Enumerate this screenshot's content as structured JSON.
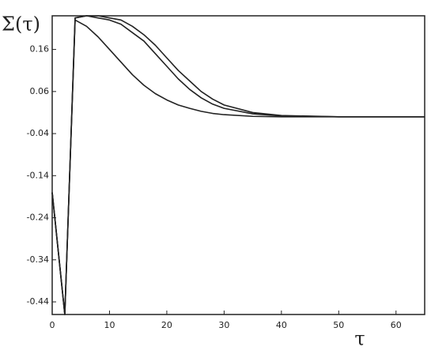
{
  "chart_data": {
    "type": "line",
    "ylabel": "Σ(τ)",
    "xlabel": "τ",
    "x": [
      0,
      2.2,
      4,
      6,
      8,
      10,
      12,
      14,
      16,
      18,
      20,
      22,
      24,
      26,
      28,
      30,
      35,
      40,
      50,
      65
    ],
    "series": [
      {
        "color": "#222222",
        "values": [
          -0.18,
          -0.47,
          0.23,
          0.215,
          0.19,
          0.16,
          0.13,
          0.1,
          0.075,
          0.055,
          0.04,
          0.028,
          0.02,
          0.013,
          0.008,
          0.005,
          0.001,
          0,
          0,
          0
        ]
      },
      {
        "color": "#222222",
        "values": [
          -0.18,
          -0.47,
          0.235,
          0.24,
          0.235,
          0.23,
          0.22,
          0.2,
          0.18,
          0.15,
          0.12,
          0.09,
          0.065,
          0.045,
          0.03,
          0.02,
          0.007,
          0.002,
          0,
          0
        ]
      },
      {
        "color": "#222222",
        "values": [
          -0.18,
          -0.47,
          0.235,
          0.24,
          0.24,
          0.235,
          0.23,
          0.215,
          0.195,
          0.17,
          0.14,
          0.11,
          0.085,
          0.06,
          0.042,
          0.028,
          0.01,
          0.003,
          0,
          0
        ]
      }
    ],
    "xlim": [
      0,
      65
    ],
    "ylim": [
      -0.47,
      0.24
    ],
    "xticks": [
      0,
      10,
      20,
      30,
      40,
      50,
      60
    ],
    "yticks": [
      0.16,
      0.06,
      -0.04,
      -0.14,
      -0.24,
      -0.34,
      -0.44
    ]
  }
}
